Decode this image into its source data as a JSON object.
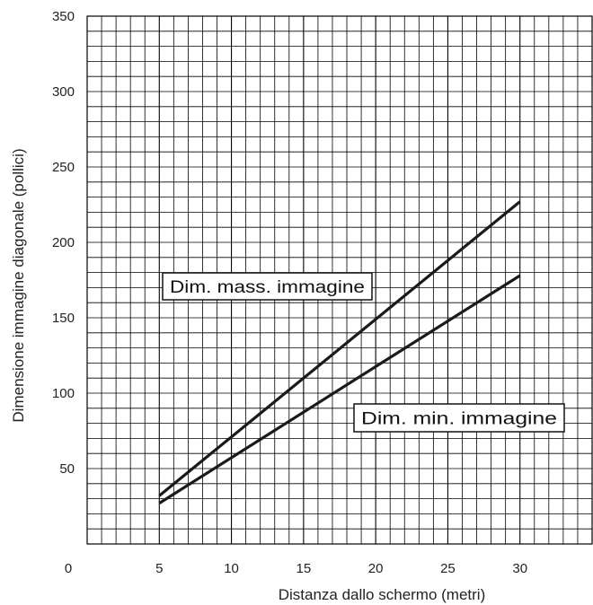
{
  "chart_data": {
    "type": "line",
    "title": "",
    "xlabel": "Distanza dallo schermo (metri)",
    "ylabel": "Dimensione immagine diagonale (pollici)",
    "xlim": [
      0,
      35
    ],
    "ylim": [
      0,
      350
    ],
    "x_ticks": [
      5,
      10,
      15,
      20,
      25,
      30
    ],
    "y_ticks": [
      50,
      100,
      150,
      200,
      250,
      300,
      350
    ],
    "origin_label": "0",
    "grid": true,
    "series": [
      {
        "name": "Dim. mass. immagine",
        "x": [
          5,
          30
        ],
        "y": [
          32,
          227
        ]
      },
      {
        "name": "Dim. min. immagine",
        "x": [
          5,
          30
        ],
        "y": [
          27,
          178
        ]
      }
    ],
    "annotations": [
      {
        "text": "Dim. mass. immagine",
        "series": 0
      },
      {
        "text": "Dim. min. immagine",
        "series": 1
      }
    ]
  }
}
